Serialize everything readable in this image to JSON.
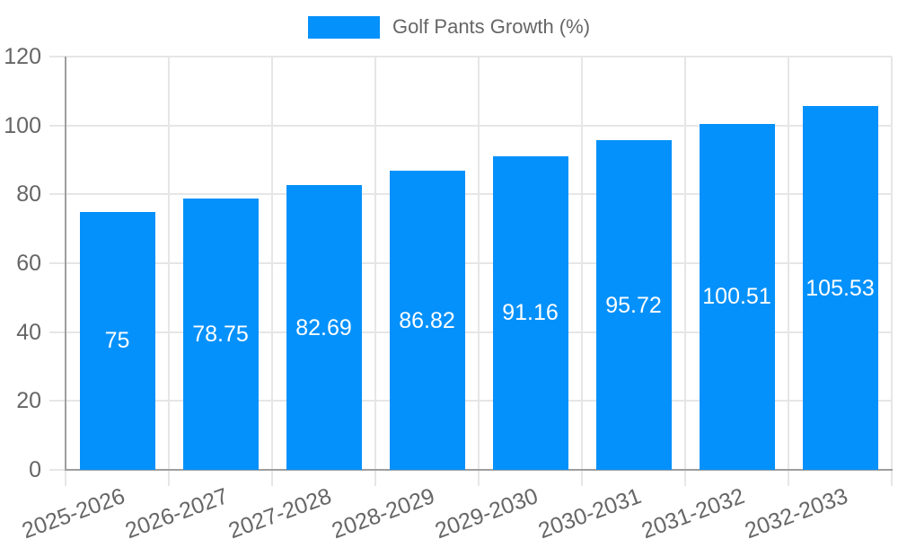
{
  "chart_data": {
    "type": "bar",
    "title": "",
    "legend": {
      "position": "top",
      "label": "Golf Pants Growth (%)"
    },
    "categories": [
      "2025-2026",
      "2026-2027",
      "2027-2028",
      "2028-2029",
      "2029-2030",
      "2030-2031",
      "2031-2032",
      "2032-2033"
    ],
    "values": [
      75,
      78.75,
      82.69,
      86.82,
      91.16,
      95.72,
      100.51,
      105.53
    ],
    "value_labels": [
      "75",
      "78.75",
      "82.69",
      "86.82",
      "91.16",
      "95.72",
      "100.51",
      "105.53"
    ],
    "xlabel": "",
    "ylabel": "",
    "ylim": [
      0,
      120
    ],
    "y_ticks": [
      0,
      20,
      40,
      60,
      80,
      100,
      120
    ],
    "grid": true,
    "colors": {
      "bar": "#0591fb",
      "grid": "#e6e6e6",
      "axis": "#9e9e9e",
      "tick_text": "#666666",
      "legend_text": "#666666",
      "bar_label_text": "#ffffff",
      "background": "#ffffff"
    }
  }
}
